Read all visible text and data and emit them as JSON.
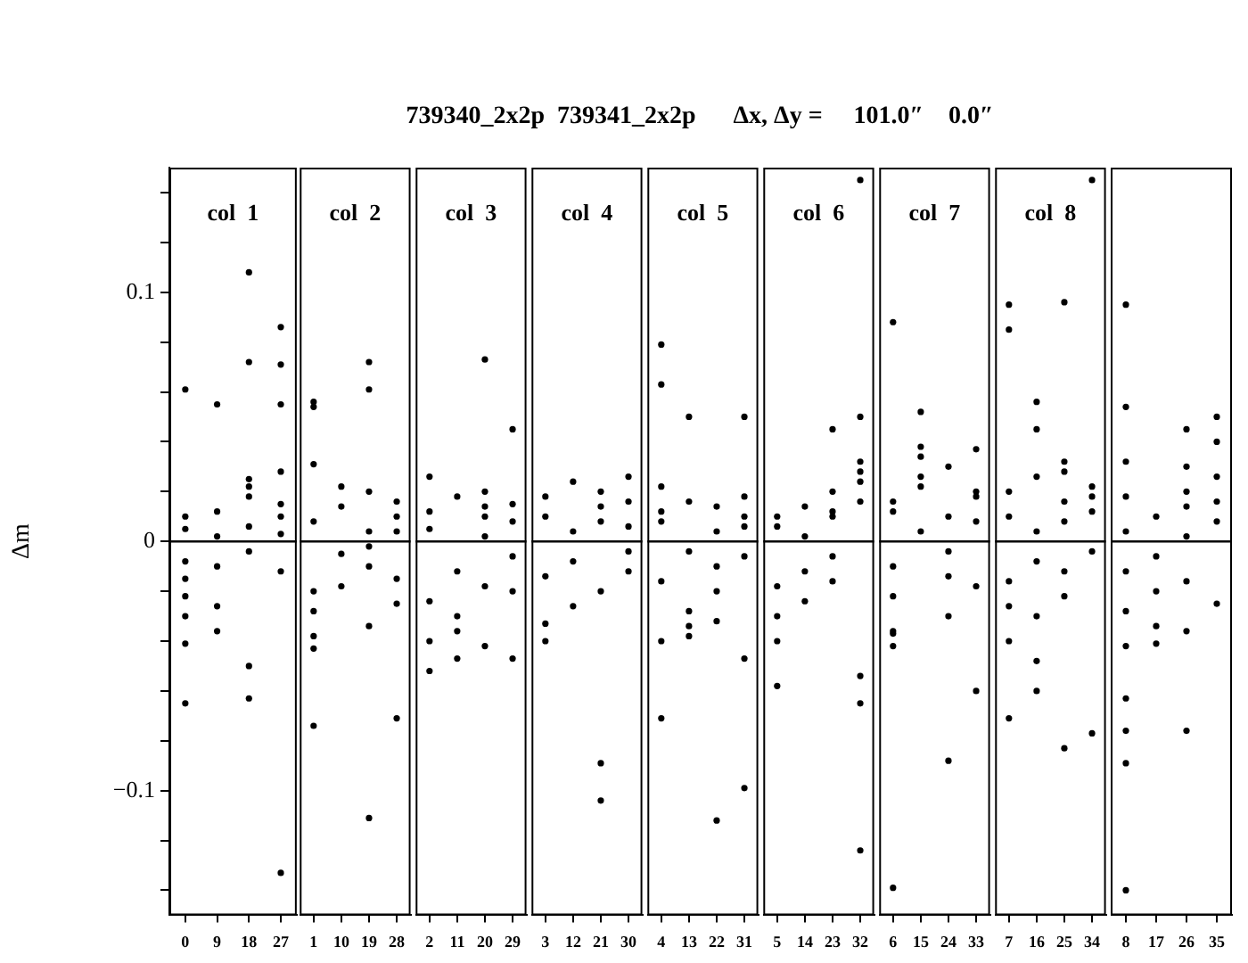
{
  "chart_data": [
    {
      "type": "scatter",
      "ylabel": "Δm",
      "annotations": [
        "col  1"
      ],
      "marker": "circle",
      "ylim": [
        -0.15,
        0.15
      ],
      "yticks": [
        {
          "value": -0.14,
          "label": null
        },
        {
          "value": -0.12,
          "label": null
        },
        {
          "value": -0.1,
          "label": "−0.1"
        },
        {
          "value": -0.08,
          "label": null
        },
        {
          "value": -0.06,
          "label": null
        },
        {
          "value": -0.04,
          "label": null
        },
        {
          "value": -0.02,
          "label": null
        },
        0,
        {
          "value": 0.02,
          "label": null
        },
        {
          "value": 0.04,
          "label": null
        },
        {
          "value": 0.06,
          "label": null
        },
        {
          "value": 0.08,
          "label": null
        },
        0.1,
        {
          "value": 0.12,
          "label": null
        },
        {
          "value": 0.14,
          "label": null
        }
      ],
      "ref_lines": [
        {
          "axis": "y",
          "value": 0,
          "color": "#000000"
        }
      ],
      "categories": [
        "0",
        "9",
        "18",
        "27"
      ],
      "series": [
        {
          "color": "#000000",
          "x": [
            "0",
            "0",
            "0",
            "0",
            "0",
            "0",
            "0",
            "0",
            "0",
            "9",
            "9",
            "9",
            "9",
            "9",
            "9",
            "18",
            "18",
            "18",
            "18",
            "18",
            "18",
            "18",
            "18",
            "18",
            "27",
            "27",
            "27",
            "27",
            "27",
            "27",
            "27",
            "27",
            "27"
          ],
          "values": [
            -0.008,
            0.005,
            -0.015,
            0.01,
            -0.022,
            -0.03,
            0.061,
            -0.065,
            -0.041,
            0.002,
            0.012,
            -0.01,
            -0.026,
            0.055,
            -0.036,
            0.018,
            0.006,
            -0.004,
            0.022,
            0.025,
            0.108,
            0.072,
            -0.05,
            -0.063,
            0.015,
            0.01,
            0.028,
            0.003,
            -0.012,
            0.071,
            0.055,
            0.086,
            -0.133
          ]
        }
      ]
    },
    {
      "type": "scatter",
      "annotations": [
        "col  2"
      ],
      "marker": "circle",
      "ylim": [
        -0.15,
        0.15
      ],
      "tick_labels": "x",
      "ref_lines": [
        {
          "axis": "y",
          "value": 0,
          "color": "#000000"
        }
      ],
      "categories": [
        "1",
        "10",
        "19",
        "28"
      ],
      "series": [
        {
          "color": "#000000",
          "x": [
            "1",
            "1",
            "1",
            "1",
            "1",
            "1",
            "1",
            "1",
            "1",
            "10",
            "10",
            "10",
            "10",
            "19",
            "19",
            "19",
            "19",
            "19",
            "19",
            "19",
            "19",
            "28",
            "28",
            "28",
            "28",
            "28",
            "28"
          ],
          "values": [
            -0.02,
            0.008,
            -0.028,
            -0.038,
            0.056,
            0.054,
            0.031,
            -0.074,
            -0.043,
            -0.005,
            0.014,
            -0.018,
            0.022,
            0.004,
            -0.01,
            0.02,
            -0.002,
            -0.034,
            0.072,
            0.061,
            -0.111,
            0.01,
            0.016,
            -0.025,
            -0.015,
            0.004,
            -0.071
          ]
        }
      ]
    },
    {
      "type": "scatter",
      "annotations": [
        "col  3"
      ],
      "marker": "circle",
      "ylim": [
        -0.15,
        0.15
      ],
      "tick_labels": "x",
      "ref_lines": [
        {
          "axis": "y",
          "value": 0,
          "color": "#000000"
        }
      ],
      "categories": [
        "2",
        "11",
        "20",
        "29"
      ],
      "series": [
        {
          "color": "#000000",
          "x": [
            "2",
            "2",
            "2",
            "2",
            "2",
            "2",
            "11",
            "11",
            "11",
            "11",
            "11",
            "20",
            "20",
            "20",
            "20",
            "20",
            "20",
            "20",
            "29",
            "29",
            "29",
            "29",
            "29",
            "29"
          ],
          "values": [
            0.012,
            -0.024,
            0.005,
            0.026,
            -0.04,
            -0.052,
            -0.012,
            0.018,
            -0.03,
            -0.036,
            -0.047,
            0.002,
            0.01,
            -0.018,
            0.014,
            0.02,
            0.073,
            -0.042,
            -0.006,
            0.008,
            -0.02,
            0.015,
            0.045,
            -0.047
          ]
        }
      ]
    },
    {
      "type": "scatter",
      "annotations": [
        "col  4"
      ],
      "marker": "circle",
      "ylim": [
        -0.15,
        0.15
      ],
      "tick_labels": "x",
      "ref_lines": [
        {
          "axis": "y",
          "value": 0,
          "color": "#000000"
        }
      ],
      "categories": [
        "3",
        "12",
        "21",
        "30"
      ],
      "series": [
        {
          "color": "#000000",
          "x": [
            "3",
            "3",
            "3",
            "3",
            "3",
            "12",
            "12",
            "12",
            "12",
            "21",
            "21",
            "21",
            "21",
            "21",
            "21",
            "30",
            "30",
            "30",
            "30",
            "30"
          ],
          "values": [
            0.01,
            -0.014,
            0.018,
            -0.033,
            -0.04,
            -0.026,
            0.004,
            -0.008,
            0.024,
            0.014,
            -0.02,
            0.008,
            0.02,
            -0.089,
            -0.104,
            -0.004,
            0.016,
            0.026,
            -0.012,
            0.006
          ]
        }
      ]
    },
    {
      "type": "scatter",
      "title": "739340_2x2p  739341_2x2p      Δx, Δy =     101.0″    0.0″",
      "annotations": [
        "col  5"
      ],
      "marker": "circle",
      "ylim": [
        -0.15,
        0.15
      ],
      "tick_labels": "x",
      "ref_lines": [
        {
          "axis": "y",
          "value": 0,
          "color": "#000000"
        }
      ],
      "categories": [
        "4",
        "13",
        "22",
        "31"
      ],
      "series": [
        {
          "color": "#000000",
          "x": [
            "4",
            "4",
            "4",
            "4",
            "4",
            "4",
            "4",
            "4",
            "13",
            "13",
            "13",
            "13",
            "13",
            "13",
            "22",
            "22",
            "22",
            "22",
            "22",
            "22",
            "31",
            "31",
            "31",
            "31",
            "31",
            "31",
            "31"
          ],
          "values": [
            0.008,
            -0.016,
            0.012,
            0.022,
            -0.04,
            0.079,
            0.063,
            -0.071,
            -0.028,
            -0.004,
            0.016,
            -0.034,
            0.05,
            -0.038,
            -0.01,
            0.004,
            0.014,
            -0.02,
            -0.032,
            -0.112,
            0.006,
            0.01,
            -0.006,
            0.018,
            0.05,
            -0.047,
            -0.099
          ]
        }
      ]
    },
    {
      "type": "scatter",
      "annotations": [
        "col  6"
      ],
      "marker": "circle",
      "ylim": [
        -0.15,
        0.15
      ],
      "tick_labels": "x",
      "ref_lines": [
        {
          "axis": "y",
          "value": 0,
          "color": "#000000"
        }
      ],
      "categories": [
        "5",
        "14",
        "23",
        "32"
      ],
      "series": [
        {
          "color": "#000000",
          "x": [
            "5",
            "5",
            "5",
            "5",
            "5",
            "5",
            "14",
            "14",
            "14",
            "14",
            "23",
            "23",
            "23",
            "23",
            "23",
            "23",
            "32",
            "32",
            "32",
            "32",
            "32",
            "32",
            "32",
            "32",
            "32"
          ],
          "values": [
            -0.018,
            -0.03,
            0.006,
            -0.04,
            0.01,
            -0.058,
            -0.012,
            -0.024,
            0.002,
            0.014,
            0.012,
            -0.006,
            0.02,
            0.01,
            -0.016,
            0.045,
            0.028,
            0.016,
            0.024,
            0.032,
            0.05,
            0.145,
            -0.054,
            -0.065,
            -0.124
          ]
        }
      ]
    },
    {
      "type": "scatter",
      "annotations": [
        "col  7"
      ],
      "marker": "circle",
      "ylim": [
        -0.15,
        0.15
      ],
      "tick_labels": "x",
      "ref_lines": [
        {
          "axis": "y",
          "value": 0,
          "color": "#000000"
        }
      ],
      "categories": [
        "6",
        "15",
        "24",
        "33"
      ],
      "series": [
        {
          "color": "#000000",
          "x": [
            "6",
            "6",
            "6",
            "6",
            "6",
            "6",
            "6",
            "6",
            "6",
            "15",
            "15",
            "15",
            "15",
            "15",
            "15",
            "24",
            "24",
            "24",
            "24",
            "24",
            "24",
            "33",
            "33",
            "33",
            "33",
            "33",
            "33"
          ],
          "values": [
            -0.022,
            0.012,
            -0.01,
            -0.036,
            0.016,
            0.088,
            -0.042,
            -0.037,
            -0.139,
            0.022,
            0.004,
            0.026,
            0.034,
            0.052,
            0.038,
            -0.014,
            0.01,
            0.03,
            -0.004,
            -0.03,
            -0.088,
            0.018,
            0.008,
            -0.018,
            0.02,
            0.037,
            -0.06
          ]
        }
      ]
    },
    {
      "type": "scatter",
      "annotations": [
        "col  8"
      ],
      "marker": "circle",
      "ylim": [
        -0.15,
        0.15
      ],
      "tick_labels": "x",
      "ref_lines": [
        {
          "axis": "y",
          "value": 0,
          "color": "#000000"
        }
      ],
      "categories": [
        "7",
        "16",
        "25",
        "34"
      ],
      "series": [
        {
          "color": "#000000",
          "x": [
            "7",
            "7",
            "7",
            "7",
            "7",
            "7",
            "7",
            "7",
            "16",
            "16",
            "16",
            "16",
            "16",
            "16",
            "16",
            "16",
            "25",
            "25",
            "25",
            "25",
            "25",
            "25",
            "25",
            "25",
            "34",
            "34",
            "34",
            "34",
            "34",
            "34"
          ],
          "values": [
            0.01,
            -0.016,
            0.02,
            -0.04,
            -0.026,
            0.095,
            0.085,
            -0.071,
            -0.03,
            0.004,
            -0.008,
            0.026,
            0.056,
            0.045,
            -0.048,
            -0.06,
            0.016,
            0.028,
            -0.012,
            0.008,
            -0.022,
            0.096,
            0.032,
            -0.083,
            0.022,
            0.012,
            -0.004,
            0.018,
            0.145,
            -0.077
          ]
        }
      ]
    },
    {
      "type": "scatter",
      "marker": "circle",
      "ylim": [
        -0.15,
        0.15
      ],
      "tick_labels": "x",
      "ref_lines": [
        {
          "axis": "y",
          "value": 0,
          "color": "#000000"
        }
      ],
      "categories": [
        "8",
        "17",
        "26",
        "35"
      ],
      "series": [
        {
          "color": "#000000",
          "x": [
            "8",
            "8",
            "8",
            "8",
            "8",
            "8",
            "8",
            "8",
            "8",
            "8",
            "8",
            "8",
            "17",
            "17",
            "17",
            "17",
            "17",
            "26",
            "26",
            "26",
            "26",
            "26",
            "26",
            "26",
            "26",
            "35",
            "35",
            "35",
            "35",
            "35",
            "35"
          ],
          "values": [
            -0.012,
            -0.028,
            0.004,
            -0.042,
            0.018,
            0.095,
            0.054,
            0.032,
            -0.063,
            -0.089,
            -0.076,
            -0.14,
            -0.02,
            -0.006,
            0.01,
            -0.034,
            -0.041,
            -0.016,
            0.002,
            0.014,
            0.02,
            0.03,
            0.045,
            -0.036,
            -0.076,
            0.008,
            0.026,
            0.016,
            0.04,
            0.05,
            -0.025
          ]
        }
      ]
    }
  ]
}
